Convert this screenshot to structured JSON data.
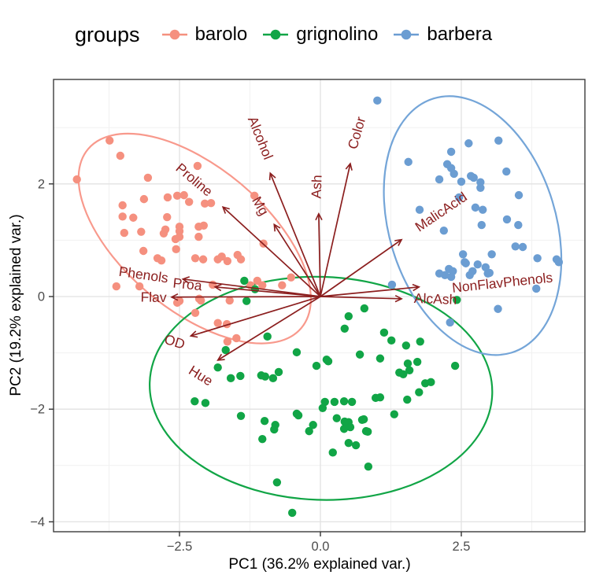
{
  "legend": {
    "title": "groups",
    "items": [
      {
        "label": "barolo",
        "color": "#F5907F"
      },
      {
        "label": "grignolino",
        "color": "#11A546"
      },
      {
        "label": "barbera",
        "color": "#6B9DD2"
      }
    ]
  },
  "axes": {
    "x_title": "PC1 (36.2% explained var.)",
    "y_title": "PC2 (19.2% explained var.)"
  },
  "colors": {
    "arrow": "#8B1E1E",
    "grid_major": "#E2E2E2",
    "grid_minor": "#F1F1F1",
    "panel_border": "#3C3C3C",
    "tick_mark": "#333333",
    "tick_label": "#4D4D4D"
  },
  "chart_data": {
    "type": "scatter",
    "title": "",
    "xlabel": "PC1 (36.2% explained var.)",
    "ylabel": "PC2 (19.2% explained var.)",
    "xlim": [
      -4.73,
      4.69
    ],
    "ylim": [
      -4.16,
      3.85
    ],
    "grid": true,
    "legend_position": "top",
    "x_ticks": {
      "values": [
        -2.5,
        0,
        2.5
      ],
      "labels": [
        "−2.5",
        "0.0",
        "2.5"
      ],
      "minor": [
        -3.75,
        -1.25,
        1.25,
        3.75
      ]
    },
    "y_ticks": {
      "values": [
        2,
        0,
        -2,
        -4
      ],
      "labels": [
        "2",
        "0",
        "−2",
        "−4"
      ],
      "minor": [
        3,
        1,
        -1,
        -3
      ]
    },
    "series": [
      {
        "name": "barolo",
        "color": "#F5907F",
        "points": [
          [
            -3.74,
            2.77
          ],
          [
            -3.55,
            2.5
          ],
          [
            -4.32,
            2.08
          ],
          [
            -3.06,
            2.11
          ],
          [
            -2.18,
            2.32
          ],
          [
            -2.42,
            1.8
          ],
          [
            -3.13,
            1.73
          ],
          [
            -2.71,
            1.76
          ],
          [
            -2.54,
            1.79
          ],
          [
            -2.33,
            1.68
          ],
          [
            -2.05,
            1.65
          ],
          [
            -1.94,
            1.66
          ],
          [
            -3.51,
            1.62
          ],
          [
            -3.51,
            1.42
          ],
          [
            -3.32,
            1.4
          ],
          [
            -3.48,
            1.13
          ],
          [
            -3.18,
            1.15
          ],
          [
            -2.72,
            1.41
          ],
          [
            -2.75,
            1.19
          ],
          [
            -2.78,
            1.12
          ],
          [
            -2.5,
            1.24
          ],
          [
            -2.5,
            1.16
          ],
          [
            -2.5,
            1.06
          ],
          [
            -2.16,
            1.24
          ],
          [
            -2.07,
            1.26
          ],
          [
            -2.16,
            1.06
          ],
          [
            -2.57,
            1.02
          ],
          [
            -3.14,
            0.81
          ],
          [
            -2.89,
            0.68
          ],
          [
            -2.56,
            0.84
          ],
          [
            -2.22,
            0.68
          ],
          [
            -2.08,
            0.66
          ],
          [
            -2.82,
            0.64
          ],
          [
            -1.75,
            0.71
          ],
          [
            -1.65,
            0.63
          ],
          [
            -1.47,
            0.74
          ],
          [
            -1.41,
            0.66
          ],
          [
            -1.24,
            0.2
          ],
          [
            -1.03,
            0.2
          ],
          [
            -3.62,
            0.18
          ],
          [
            -3.21,
            0.18
          ],
          [
            -1.91,
            0.21
          ],
          [
            -1.61,
            -0.07
          ],
          [
            -2.12,
            -0.07
          ],
          [
            -2.5,
            -0.08
          ],
          [
            -2.22,
            -0.29
          ],
          [
            -1.82,
            -0.47
          ],
          [
            -1.65,
            -0.8
          ],
          [
            -1.12,
            0.28
          ],
          [
            -0.68,
            0.2
          ],
          [
            -0.52,
            0.34
          ],
          [
            -2.15,
            -0.04
          ],
          [
            -2.54,
            -0.11
          ],
          [
            -1.66,
            -0.49
          ],
          [
            -1.49,
            -0.74
          ],
          [
            -1.01,
            0.94
          ],
          [
            -1.17,
            1.79
          ],
          [
            -1.82,
            0.66
          ]
        ]
      },
      {
        "name": "grignolino",
        "color": "#11A546",
        "points": [
          [
            -1.35,
            0.28
          ],
          [
            -1.16,
            0.13
          ],
          [
            -1.31,
            -0.08
          ],
          [
            -0.94,
            -0.71
          ],
          [
            -1.68,
            -0.95
          ],
          [
            -1.82,
            -1.26
          ],
          [
            -1.59,
            -1.45
          ],
          [
            -1.42,
            -1.41
          ],
          [
            -1.05,
            -1.4
          ],
          [
            -0.98,
            -1.42
          ],
          [
            -0.84,
            -1.45
          ],
          [
            -0.74,
            -1.34
          ],
          [
            -0.42,
            -0.99
          ],
          [
            -0.07,
            -1.23
          ],
          [
            0.14,
            -1.15
          ],
          [
            0.7,
            -1.03
          ],
          [
            -2.23,
            -1.86
          ],
          [
            -2.04,
            -1.89
          ],
          [
            -1.41,
            -2.12
          ],
          [
            -0.99,
            -2.21
          ],
          [
            -0.8,
            -2.28
          ],
          [
            -0.82,
            -2.36
          ],
          [
            -1.03,
            -2.53
          ],
          [
            -0.42,
            -2.08
          ],
          [
            -0.39,
            -2.11
          ],
          [
            -0.2,
            -2.39
          ],
          [
            -0.13,
            -2.28
          ],
          [
            0.08,
            -1.87
          ],
          [
            0.25,
            -1.87
          ],
          [
            0.42,
            -1.86
          ],
          [
            0.56,
            -1.87
          ],
          [
            0.04,
            -1.98
          ],
          [
            0.29,
            -2.16
          ],
          [
            0.43,
            -2.22
          ],
          [
            0.46,
            -2.28
          ],
          [
            0.5,
            -2.23
          ],
          [
            0.53,
            -2.32
          ],
          [
            0.42,
            -2.35
          ],
          [
            0.74,
            -2.19
          ],
          [
            0.81,
            -2.39
          ],
          [
            0.5,
            -2.6
          ],
          [
            0.63,
            -2.64
          ],
          [
            0.22,
            -2.77
          ],
          [
            0.85,
            -3.02
          ],
          [
            -0.77,
            -3.3
          ],
          [
            -0.5,
            -3.84
          ],
          [
            0.98,
            -1.8
          ],
          [
            1.13,
            -0.64
          ],
          [
            1.26,
            -0.78
          ],
          [
            1.52,
            -0.87
          ],
          [
            1.77,
            -0.8
          ],
          [
            1.55,
            -1.19
          ],
          [
            1.72,
            -1.16
          ],
          [
            2.39,
            -1.23
          ],
          [
            1.4,
            -1.35
          ],
          [
            1.47,
            -1.38
          ],
          [
            1.58,
            -1.31
          ],
          [
            1.86,
            -1.54
          ],
          [
            1.96,
            -1.52
          ],
          [
            1.75,
            -1.7
          ],
          [
            1.54,
            -1.83
          ],
          [
            1.06,
            -1.79
          ],
          [
            1.31,
            -2.09
          ],
          [
            0.77,
            -2.18
          ],
          [
            0.84,
            -2.4
          ],
          [
            0.5,
            -0.35
          ],
          [
            0.78,
            -0.21
          ],
          [
            0.43,
            -0.57
          ],
          [
            1.06,
            -1.1
          ],
          [
            0.11,
            -1.12
          ],
          [
            2.42,
            -0.06
          ]
        ]
      },
      {
        "name": "barbera",
        "color": "#6B9DD2",
        "points": [
          [
            1.01,
            3.48
          ],
          [
            2.63,
            2.72
          ],
          [
            3.16,
            2.77
          ],
          [
            2.32,
            2.57
          ],
          [
            1.56,
            2.39
          ],
          [
            2.25,
            2.35
          ],
          [
            2.32,
            2.28
          ],
          [
            2.37,
            2.18
          ],
          [
            3.3,
            2.22
          ],
          [
            2.11,
            2.08
          ],
          [
            2.5,
            2.04
          ],
          [
            2.67,
            2.14
          ],
          [
            2.72,
            2.11
          ],
          [
            2.84,
            2.03
          ],
          [
            2.84,
            1.93
          ],
          [
            3.52,
            1.8
          ],
          [
            2.46,
            1.76
          ],
          [
            1.76,
            1.54
          ],
          [
            2.75,
            1.58
          ],
          [
            2.88,
            1.54
          ],
          [
            3.31,
            1.37
          ],
          [
            3.51,
            1.27
          ],
          [
            2.86,
            1.27
          ],
          [
            2.19,
            1.17
          ],
          [
            3.46,
            0.89
          ],
          [
            3.59,
            0.88
          ],
          [
            2.53,
            0.75
          ],
          [
            3.04,
            0.75
          ],
          [
            2.58,
            0.59
          ],
          [
            2.79,
            0.57
          ],
          [
            2.28,
            0.49
          ],
          [
            2.35,
            0.45
          ],
          [
            2.21,
            0.38
          ],
          [
            2.32,
            0.35
          ],
          [
            2.7,
            0.45
          ],
          [
            2.93,
            0.52
          ],
          [
            2.97,
            0.41
          ],
          [
            3.85,
            0.68
          ],
          [
            4.19,
            0.66
          ],
          [
            4.23,
            0.61
          ],
          [
            3.83,
            0.14
          ],
          [
            3.15,
            -0.22
          ],
          [
            2.3,
            -0.46
          ],
          [
            1.27,
            0.21
          ],
          [
            2.11,
            0.41
          ],
          [
            2.65,
            0.38
          ],
          [
            3.0,
            0.42
          ],
          [
            2.56,
            0.61
          ]
        ]
      }
    ],
    "ellipses": [
      {
        "group": "barolo",
        "color": "#F8998C",
        "cx": -2.23,
        "cy": 1.03,
        "rx": 2.47,
        "ry": 1.27,
        "rotation_deg": 40
      },
      {
        "group": "grignolino",
        "color": "#11A546",
        "cx": 0.01,
        "cy": -1.63,
        "rx": 3.04,
        "ry": 1.98,
        "rotation_deg": 2
      },
      {
        "group": "barbera",
        "color": "#74A5D8",
        "cx": 2.7,
        "cy": 1.26,
        "rx": 2.36,
        "ry": 1.48,
        "rotation_deg": 73
      }
    ],
    "loadings": {
      "color": "#8B1E1E",
      "arrows": [
        {
          "name": "Alcohol",
          "x": -0.89,
          "y": 2.19,
          "lx": -1.08,
          "ly": 2.81,
          "angle": 68
        },
        {
          "name": "Mg",
          "x": -0.82,
          "y": 1.28,
          "lx": -1.08,
          "ly": 1.6,
          "angle": 60
        },
        {
          "name": "Ash",
          "x": -0.03,
          "y": 1.47,
          "lx": -0.05,
          "ly": 1.95,
          "angle": -88
        },
        {
          "name": "Color",
          "x": 0.53,
          "y": 2.36,
          "lx": 0.66,
          "ly": 2.9,
          "angle": -74
        },
        {
          "name": "Proline",
          "x": -1.73,
          "y": 1.59,
          "lx": -2.25,
          "ly": 2.06,
          "angle": 40
        },
        {
          "name": "MalicAcid",
          "x": 1.44,
          "y": 1.01,
          "lx": 2.15,
          "ly": 1.49,
          "angle": -34
        },
        {
          "name": "Phenols",
          "x": -2.44,
          "y": 0.31,
          "lx": -3.14,
          "ly": 0.37,
          "angle": 8
        },
        {
          "name": "Proa",
          "x": -1.87,
          "y": 0.17,
          "lx": -2.36,
          "ly": 0.2,
          "angle": 6
        },
        {
          "name": "Flav",
          "x": -2.64,
          "y": -0.01,
          "lx": -2.96,
          "ly": -0.03,
          "angle": 1
        },
        {
          "name": "NonFlavPhenols",
          "x": 1.75,
          "y": 0.17,
          "lx": 3.23,
          "ly": 0.23,
          "angle": -6
        },
        {
          "name": "AlcAsh",
          "x": 1.44,
          "y": -0.04,
          "lx": 2.04,
          "ly": -0.06,
          "angle": 2
        },
        {
          "name": "OD",
          "x": -2.3,
          "y": -0.7,
          "lx": -2.59,
          "ly": -0.82,
          "angle": 17
        },
        {
          "name": "Hue",
          "x": -1.82,
          "y": -1.13,
          "lx": -2.13,
          "ly": -1.42,
          "angle": 32
        }
      ]
    }
  }
}
